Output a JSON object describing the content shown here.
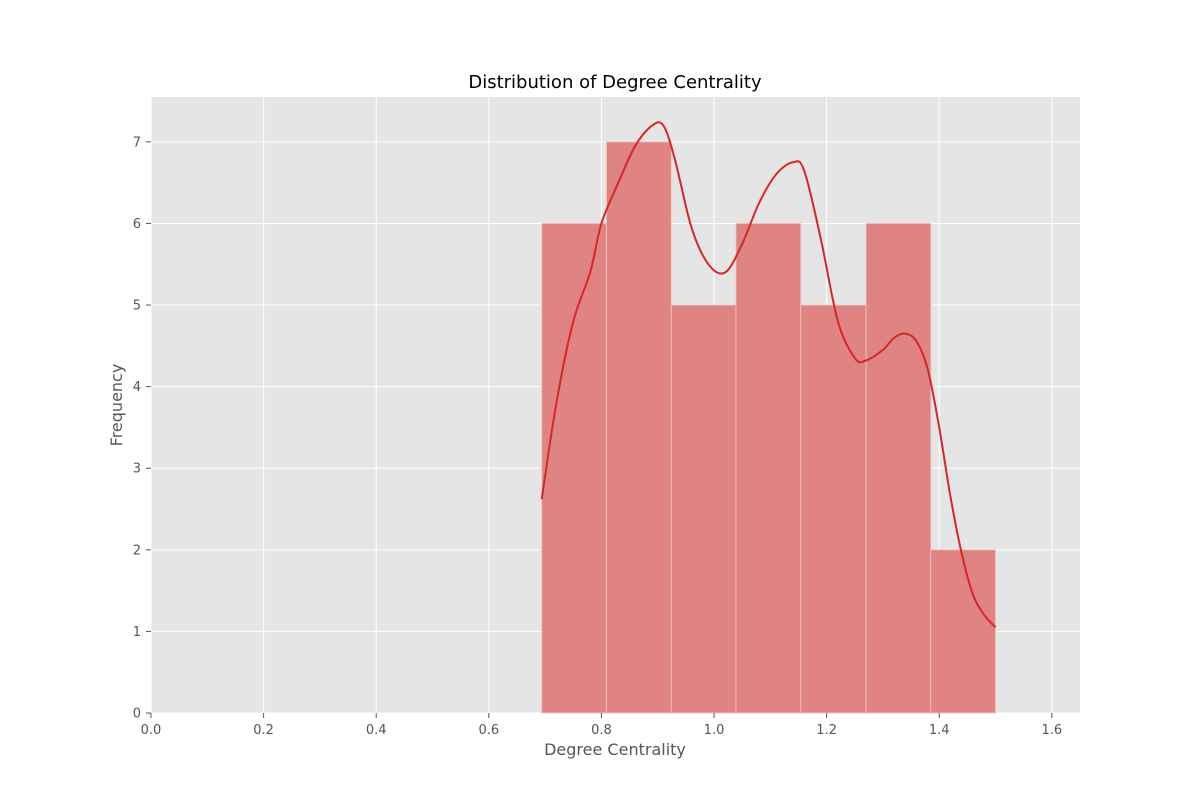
{
  "chart_data": {
    "type": "bar",
    "title": "Distribution of Degree Centrality",
    "xlabel": "Degree Centrality",
    "ylabel": "Frequency",
    "xlim": [
      0.0,
      1.65
    ],
    "ylim": [
      0,
      7.55
    ],
    "xticks": [
      "0.0",
      "0.2",
      "0.4",
      "0.6",
      "0.8",
      "1.0",
      "1.2",
      "1.4",
      "1.6"
    ],
    "yticks": [
      "0",
      "1",
      "2",
      "3",
      "4",
      "5",
      "6",
      "7"
    ],
    "bins": [
      {
        "start": 0.694,
        "end": 0.809,
        "count": 6
      },
      {
        "start": 0.809,
        "end": 0.924,
        "count": 7
      },
      {
        "start": 0.924,
        "end": 1.039,
        "count": 5
      },
      {
        "start": 1.039,
        "end": 1.154,
        "count": 6
      },
      {
        "start": 1.154,
        "end": 1.27,
        "count": 5
      },
      {
        "start": 1.27,
        "end": 1.385,
        "count": 6
      },
      {
        "start": 1.385,
        "end": 1.5,
        "count": 2
      }
    ],
    "kde": {
      "x": [
        0.694,
        0.72,
        0.75,
        0.78,
        0.8,
        0.83,
        0.86,
        0.89,
        0.91,
        0.93,
        0.96,
        0.99,
        1.02,
        1.05,
        1.08,
        1.11,
        1.14,
        1.16,
        1.19,
        1.22,
        1.25,
        1.27,
        1.3,
        1.32,
        1.34,
        1.36,
        1.38,
        1.4,
        1.42,
        1.44,
        1.46,
        1.48,
        1.5
      ],
      "y": [
        2.62,
        3.8,
        4.8,
        5.4,
        6.0,
        6.5,
        6.95,
        7.2,
        7.2,
        6.8,
        5.95,
        5.5,
        5.4,
        5.75,
        6.25,
        6.6,
        6.75,
        6.65,
        5.8,
        4.8,
        4.35,
        4.32,
        4.45,
        4.6,
        4.65,
        4.55,
        4.2,
        3.5,
        2.65,
        1.95,
        1.45,
        1.2,
        1.05
      ]
    },
    "grid": true,
    "colors": {
      "bar": "#e08383",
      "line": "#d62728",
      "background": "#e5e5e5",
      "grid": "#ffffff"
    }
  }
}
